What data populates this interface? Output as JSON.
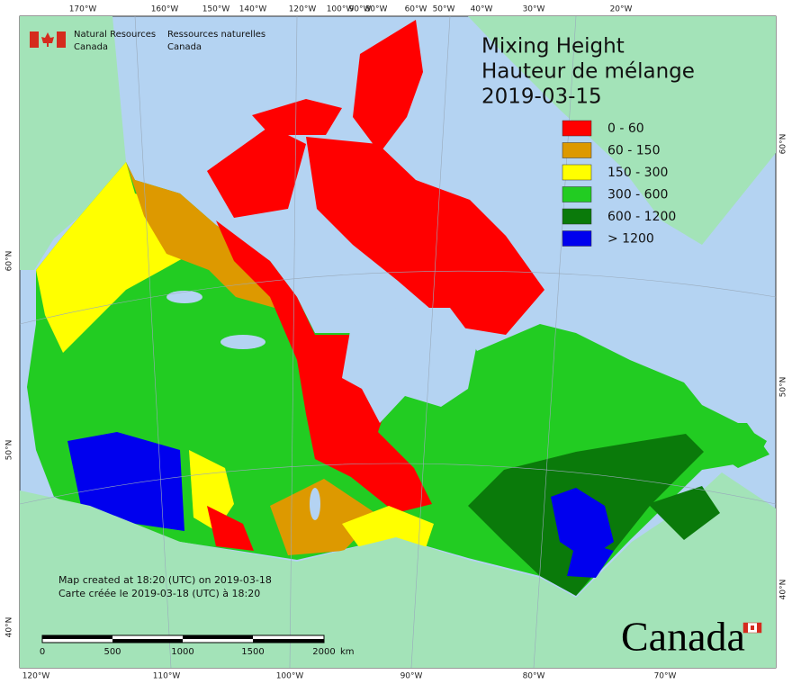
{
  "header": {
    "org_en": [
      "Natural Resources",
      "Canada"
    ],
    "org_fr": [
      "Ressources naturelles",
      "Canada"
    ]
  },
  "title": [
    "Mixing Height",
    "Hauteur de mélange",
    "2019-03-15"
  ],
  "legend": [
    {
      "label": "0 - 60",
      "color": "#ff0000"
    },
    {
      "label": "60 - 150",
      "color": "#dd9900"
    },
    {
      "label": "150 - 300",
      "color": "#ffff00"
    },
    {
      "label": "300 - 600",
      "color": "#22cc22"
    },
    {
      "label": "600 - 1200",
      "color": "#0a7a0a"
    },
    {
      "label": "> 1200",
      "color": "#0000ee"
    }
  ],
  "graticule": {
    "top": [
      "170°W",
      "160°W",
      "150°W",
      "140°W",
      "120°W",
      "100°W",
      "90°W",
      "80°W",
      "60°W",
      "50°W",
      "40°W",
      "30°W",
      "20°W"
    ],
    "bottom": [
      "120°W",
      "110°W",
      "100°W",
      "90°W",
      "80°W",
      "70°W"
    ],
    "left": [
      "60°N",
      "50°N",
      "40°N"
    ],
    "right": [
      "60°N",
      "50°N",
      "40°N"
    ]
  },
  "credits": [
    "Map created at 18:20 (UTC) on 2019-03-18",
    "Carte créée le 2019-03-18 (UTC) à 18:20"
  ],
  "scale_bar": {
    "labels": [
      "0",
      "500",
      "1000",
      "1500",
      "2000"
    ],
    "unit": "km"
  },
  "wordmark": "Canada"
}
